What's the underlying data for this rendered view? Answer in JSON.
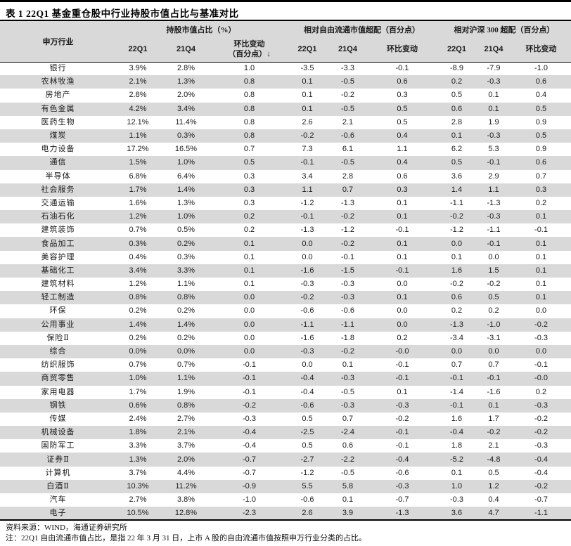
{
  "title": "表 1 22Q1 基金重仓股中行业持股市值占比与基准对比",
  "table": {
    "col_industry": "申万行业",
    "groups": [
      {
        "label": "持股市值占比（%）",
        "cols": [
          "22Q1",
          "21Q4",
          "环比变动\n（百分点）↓"
        ]
      },
      {
        "label": "相对自由流通市值超配（百分点）",
        "cols": [
          "22Q1",
          "21Q4",
          "环比变动"
        ]
      },
      {
        "label": "相对沪深 300 超配（百分点）",
        "cols": [
          "22Q1",
          "21Q4",
          "环比变动"
        ]
      }
    ],
    "rows": [
      [
        "银行",
        "3.9%",
        "2.8%",
        "1.0",
        "-3.5",
        "-3.3",
        "-0.1",
        "-8.9",
        "-7.9",
        "-1.0"
      ],
      [
        "农林牧渔",
        "2.1%",
        "1.3%",
        "0.8",
        "0.1",
        "-0.5",
        "0.6",
        "0.2",
        "-0.3",
        "0.6"
      ],
      [
        "房地产",
        "2.8%",
        "2.0%",
        "0.8",
        "0.1",
        "-0.2",
        "0.3",
        "0.5",
        "0.1",
        "0.4"
      ],
      [
        "有色金属",
        "4.2%",
        "3.4%",
        "0.8",
        "0.1",
        "-0.5",
        "0.5",
        "0.6",
        "0.1",
        "0.5"
      ],
      [
        "医药生物",
        "12.1%",
        "11.4%",
        "0.8",
        "2.6",
        "2.1",
        "0.5",
        "2.8",
        "1.9",
        "0.9"
      ],
      [
        "煤炭",
        "1.1%",
        "0.3%",
        "0.8",
        "-0.2",
        "-0.6",
        "0.4",
        "0.1",
        "-0.3",
        "0.5"
      ],
      [
        "电力设备",
        "17.2%",
        "16.5%",
        "0.7",
        "7.3",
        "6.1",
        "1.1",
        "6.2",
        "5.3",
        "0.9"
      ],
      [
        "通信",
        "1.5%",
        "1.0%",
        "0.5",
        "-0.1",
        "-0.5",
        "0.4",
        "0.5",
        "-0.1",
        "0.6"
      ],
      [
        "半导体",
        "6.8%",
        "6.4%",
        "0.3",
        "3.4",
        "2.8",
        "0.6",
        "3.6",
        "2.9",
        "0.7"
      ],
      [
        "社会服务",
        "1.7%",
        "1.4%",
        "0.3",
        "1.1",
        "0.7",
        "0.3",
        "1.4",
        "1.1",
        "0.3"
      ],
      [
        "交通运输",
        "1.6%",
        "1.3%",
        "0.3",
        "-1.2",
        "-1.3",
        "0.1",
        "-1.1",
        "-1.3",
        "0.2"
      ],
      [
        "石油石化",
        "1.2%",
        "1.0%",
        "0.2",
        "-0.1",
        "-0.2",
        "0.1",
        "-0.2",
        "-0.3",
        "0.1"
      ],
      [
        "建筑装饰",
        "0.7%",
        "0.5%",
        "0.2",
        "-1.3",
        "-1.2",
        "-0.1",
        "-1.2",
        "-1.1",
        "-0.1"
      ],
      [
        "食品加工",
        "0.3%",
        "0.2%",
        "0.1",
        "0.0",
        "-0.2",
        "0.1",
        "0.0",
        "-0.1",
        "0.1"
      ],
      [
        "美容护理",
        "0.4%",
        "0.3%",
        "0.1",
        "0.0",
        "-0.1",
        "0.1",
        "0.1",
        "0.0",
        "0.1"
      ],
      [
        "基础化工",
        "3.4%",
        "3.3%",
        "0.1",
        "-1.6",
        "-1.5",
        "-0.1",
        "1.6",
        "1.5",
        "0.1"
      ],
      [
        "建筑材料",
        "1.2%",
        "1.1%",
        "0.1",
        "-0.3",
        "-0.3",
        "0.0",
        "-0.2",
        "-0.2",
        "0.1"
      ],
      [
        "轻工制造",
        "0.8%",
        "0.8%",
        "0.0",
        "-0.2",
        "-0.3",
        "0.1",
        "0.6",
        "0.5",
        "0.1"
      ],
      [
        "环保",
        "0.2%",
        "0.2%",
        "0.0",
        "-0.6",
        "-0.6",
        "0.0",
        "0.2",
        "0.2",
        "0.0"
      ],
      [
        "公用事业",
        "1.4%",
        "1.4%",
        "0.0",
        "-1.1",
        "-1.1",
        "0.0",
        "-1.3",
        "-1.0",
        "-0.2"
      ],
      [
        "保险Ⅱ",
        "0.2%",
        "0.2%",
        "0.0",
        "-1.6",
        "-1.8",
        "0.2",
        "-3.4",
        "-3.1",
        "-0.3"
      ],
      [
        "综合",
        "0.0%",
        "0.0%",
        "0.0",
        "-0.3",
        "-0.2",
        "-0.0",
        "0.0",
        "0.0",
        "0.0"
      ],
      [
        "纺织服饰",
        "0.7%",
        "0.7%",
        "-0.1",
        "0.0",
        "0.1",
        "-0.1",
        "0.7",
        "0.7",
        "-0.1"
      ],
      [
        "商贸零售",
        "1.0%",
        "1.1%",
        "-0.1",
        "-0.4",
        "-0.3",
        "-0.1",
        "-0.1",
        "-0.1",
        "-0.0"
      ],
      [
        "家用电器",
        "1.7%",
        "1.9%",
        "-0.1",
        "-0.4",
        "-0.5",
        "0.1",
        "-1.4",
        "-1.6",
        "0.2"
      ],
      [
        "钢铁",
        "0.6%",
        "0.8%",
        "-0.2",
        "-0.6",
        "-0.3",
        "-0.3",
        "-0.1",
        "0.1",
        "-0.3"
      ],
      [
        "传媒",
        "2.4%",
        "2.7%",
        "-0.3",
        "0.5",
        "0.7",
        "-0.2",
        "1.6",
        "1.7",
        "-0.2"
      ],
      [
        "机械设备",
        "1.8%",
        "2.1%",
        "-0.4",
        "-2.5",
        "-2.4",
        "-0.1",
        "-0.4",
        "-0.2",
        "-0.2"
      ],
      [
        "国防军工",
        "3.3%",
        "3.7%",
        "-0.4",
        "0.5",
        "0.6",
        "-0.1",
        "1.8",
        "2.1",
        "-0.3"
      ],
      [
        "证券Ⅱ",
        "1.3%",
        "2.0%",
        "-0.7",
        "-2.7",
        "-2.2",
        "-0.4",
        "-5.2",
        "-4.8",
        "-0.4"
      ],
      [
        "计算机",
        "3.7%",
        "4.4%",
        "-0.7",
        "-1.2",
        "-0.5",
        "-0.6",
        "0.1",
        "0.5",
        "-0.4"
      ],
      [
        "白酒Ⅱ",
        "10.3%",
        "11.2%",
        "-0.9",
        "5.5",
        "5.8",
        "-0.3",
        "1.0",
        "1.2",
        "-0.2"
      ],
      [
        "汽车",
        "2.7%",
        "3.8%",
        "-1.0",
        "-0.6",
        "0.1",
        "-0.7",
        "-0.3",
        "0.4",
        "-0.7"
      ],
      [
        "电子",
        "10.5%",
        "12.8%",
        "-2.3",
        "2.6",
        "3.9",
        "-1.3",
        "3.6",
        "4.7",
        "-1.1"
      ]
    ]
  },
  "footer": {
    "source": "资料来源：WIND，海通证券研究所",
    "note": "注：22Q1 自由流通市值占比，是指 22 年 3 月 31 日，上市 A 股的自由流通市值按照申万行业分类的占比。"
  }
}
